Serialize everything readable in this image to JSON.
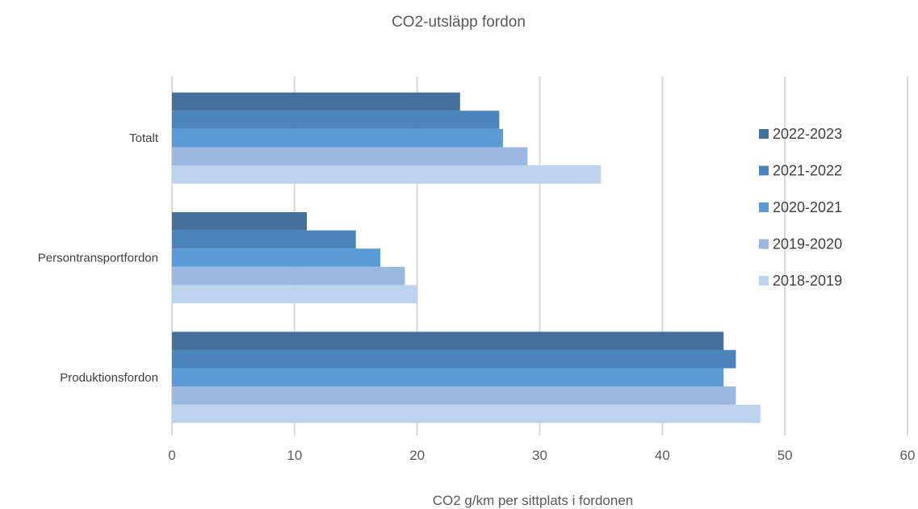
{
  "chart_data": {
    "type": "bar",
    "orientation": "horizontal",
    "title": "CO2-utsläpp fordon",
    "xlabel": "CO2 g/km per sittplats i fordonen",
    "ylabel": "",
    "xlim": [
      0,
      60
    ],
    "x_ticks": [
      "0",
      "10",
      "20",
      "30",
      "40",
      "50",
      "60"
    ],
    "grid": true,
    "legend_position": "right",
    "categories": [
      "Totalt",
      "Persontransportfordon",
      "Produktionsfordon"
    ],
    "series": [
      {
        "name": "2022-2023",
        "color": "#44719b",
        "values": [
          23.5,
          11,
          45
        ]
      },
      {
        "name": "2021-2022",
        "color": "#4c85bb",
        "values": [
          26.7,
          15,
          46
        ]
      },
      {
        "name": "2020-2021",
        "color": "#5b9bd5",
        "values": [
          27,
          17,
          45
        ]
      },
      {
        "name": "2019-2020",
        "color": "#9ab8e0",
        "values": [
          29,
          19,
          46
        ]
      },
      {
        "name": "2018-2019",
        "color": "#bdd2ec",
        "values": [
          35,
          20,
          48
        ]
      }
    ]
  }
}
